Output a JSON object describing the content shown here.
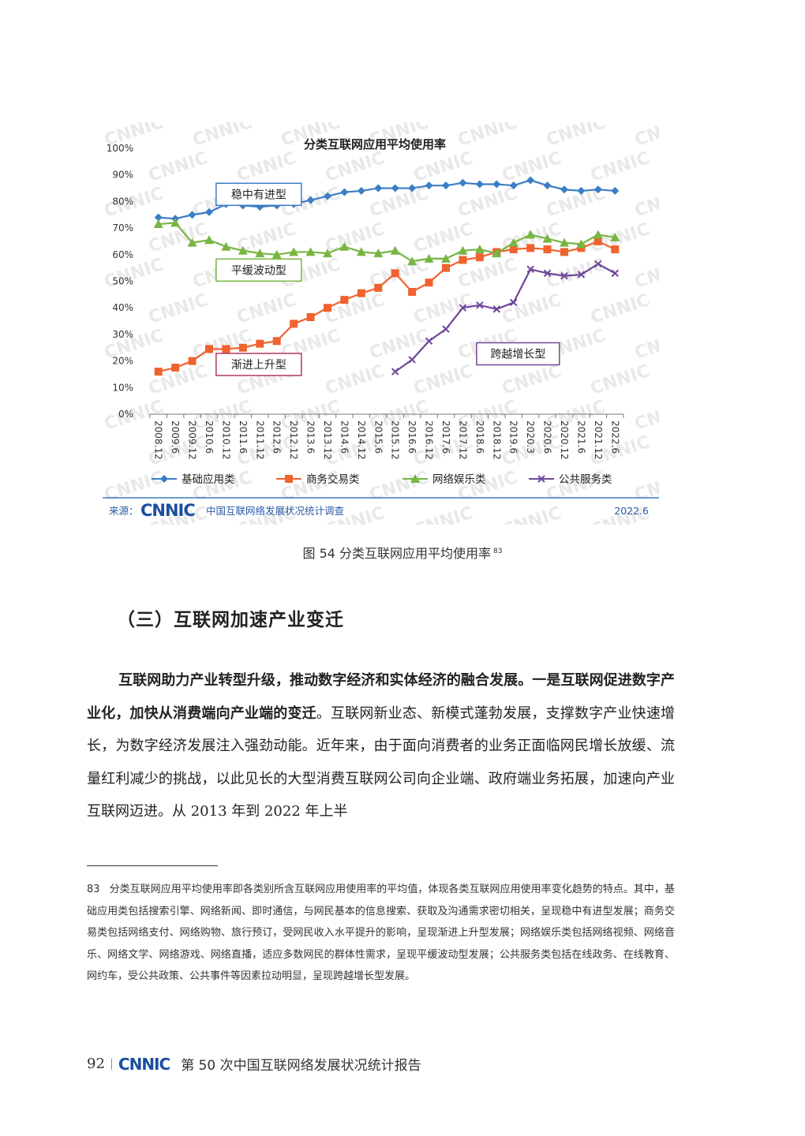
{
  "chart_data": {
    "type": "line",
    "title": "分类互联网应用平均使用率",
    "categories": [
      "2008.12",
      "2009.6",
      "2009.12",
      "2010.6",
      "2010.12",
      "2011.6",
      "2011.12",
      "2012.6",
      "2012.12",
      "2013.6",
      "2013.12",
      "2014.6",
      "2014.12",
      "2015.6",
      "2015.12",
      "2016.6",
      "2016.12",
      "2017.6",
      "2017.12",
      "2018.6",
      "2018.12",
      "2019.6",
      "2020.3",
      "2020.6",
      "2020.12",
      "2021.6",
      "2021.12",
      "2022.6"
    ],
    "ylim": [
      0,
      100
    ],
    "yticks": [
      "0%",
      "10%",
      "20%",
      "30%",
      "40%",
      "50%",
      "60%",
      "70%",
      "80%",
      "90%",
      "100%"
    ],
    "series": [
      {
        "name": "基础应用类",
        "color": "#3c7dc4",
        "marker": "diamond",
        "values": [
          74,
          73.5,
          75,
          76,
          79,
          78.5,
          78,
          78.5,
          79,
          80.5,
          82,
          83.5,
          84,
          85,
          85,
          85,
          86,
          86,
          87,
          86.5,
          86.5,
          86,
          88,
          86,
          84.5,
          84,
          84.5,
          84
        ]
      },
      {
        "name": "商务交易类",
        "color": "#f0622e",
        "marker": "square",
        "values": [
          16,
          17.5,
          20,
          24.5,
          24.5,
          25,
          26.5,
          27.5,
          34,
          36.5,
          40,
          43,
          45.5,
          47.5,
          53,
          46,
          49.5,
          55,
          58,
          59,
          61,
          62,
          62.5,
          62,
          61,
          62.5,
          65,
          62
        ]
      },
      {
        "name": "网络娱乐类",
        "color": "#78b543",
        "marker": "triangle",
        "values": [
          71.5,
          72,
          64.5,
          65.5,
          63,
          61.5,
          60.5,
          60,
          61,
          61,
          60.5,
          63,
          61,
          60.5,
          61.5,
          57.5,
          58.5,
          58.5,
          61.5,
          62,
          60.5,
          64.5,
          67.5,
          66,
          64.5,
          64,
          67.5,
          66.5
        ]
      },
      {
        "name": "公共服务类",
        "color": "#6e479a",
        "marker": "x",
        "values": [
          null,
          null,
          null,
          null,
          null,
          null,
          null,
          null,
          null,
          null,
          null,
          null,
          null,
          null,
          16,
          20.5,
          27.5,
          32,
          40,
          41,
          39.5,
          42,
          54.5,
          53,
          52,
          52.5,
          56.5,
          53
        ]
      }
    ],
    "annotations": [
      {
        "text": "稳中有进型",
        "color": "#3c7dc4"
      },
      {
        "text": "平缓波动型",
        "color": "#78b543"
      },
      {
        "text": "渐进上升型",
        "color": "#b03a5b"
      },
      {
        "text": "跨越增长型",
        "color": "#6e479a"
      }
    ],
    "source_label": "来源：",
    "source_logo": "CNNIC",
    "source_text": "中国互联网络发展状况统计调查",
    "source_date": "2022.6",
    "watermark": "CNNIC"
  },
  "caption": {
    "text": "图 54  分类互联网应用平均使用率",
    "note": "83"
  },
  "section_title": "（三）互联网加速产业变迁",
  "paragraph": {
    "bold1": "互联网助力产业转型升级，推动数字经济和实体经济的融合发展。一是互联网促进数字产业化，加快从消费端向产业端的变迁",
    "rest": "。互联网新业态、新模式蓬勃发展，支撑数字产业快速增长，为数字经济发展注入强劲动能。近年来，由于面向消费者的业务正面临网民增长放缓、流量红利减少的挑战，以此见长的大型消费互联网公司向企业端、政府端业务拓展，加速向产业互联网迈进。从 2013 年到 2022 年上半"
  },
  "footnote": {
    "number": "83",
    "text": "分类互联网应用平均使用率即各类别所含互联网应用使用率的平均值，体现各类互联网应用使用率变化趋势的特点。其中，基础应用类包括搜索引擎、网络新闻、即时通信，与网民基本的信息搜索、获取及沟通需求密切相关，呈现稳中有进型发展；商务交易类包括网络支付、网络购物、旅行预订，受网民收入水平提升的影响，呈现渐进上升型发展；网络娱乐类包括网络视频、网络音乐、网络文学、网络游戏、网络直播，适应多数网民的群体性需求，呈现平缓波动型发展；公共服务类包括在线政务、在线教育、网约车，受公共政策、公共事件等因素拉动明显，呈现跨越增长型发展。"
  },
  "footer": {
    "page": "92",
    "logo": "CNNIC",
    "title": "第 50 次中国互联网络发展状况统计报告"
  }
}
